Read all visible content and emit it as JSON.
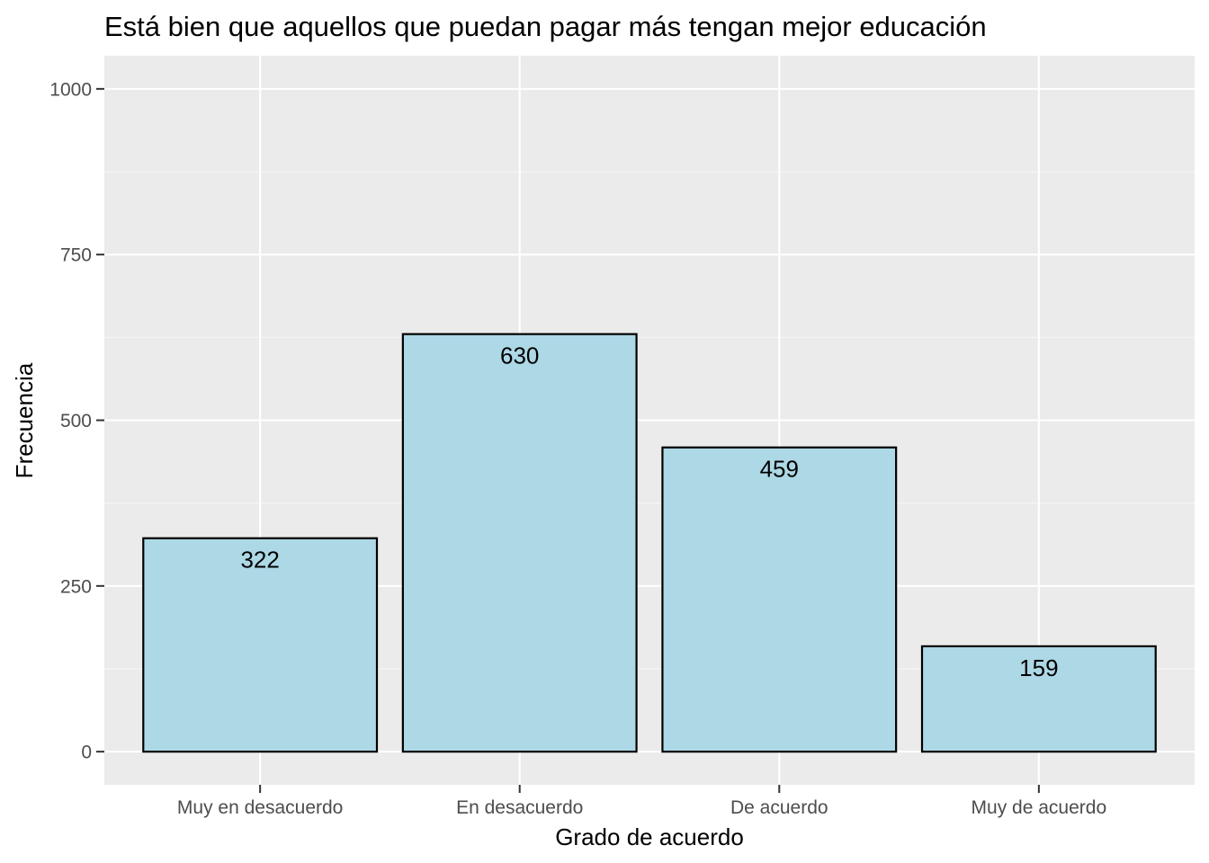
{
  "colors": {
    "panel_background": "#EBEBEB",
    "grid_major": "#FFFFFF",
    "grid_minor": "#F5F5F5",
    "bar_fill": "#ADD8E6",
    "bar_outline": "#000000",
    "tick_text": "#4D4D4D"
  },
  "chart_data": {
    "type": "bar",
    "title": "Está bien que aquellos que puedan pagar más tengan mejor educación",
    "xlabel": "Grado de acuerdo",
    "ylabel": "Frecuencia",
    "categories": [
      "Muy en desacuerdo",
      "En desacuerdo",
      "De acuerdo",
      "Muy de acuerdo"
    ],
    "values": [
      322,
      630,
      459,
      159
    ],
    "data_labels": [
      "322",
      "630",
      "459",
      "159"
    ],
    "yticks": [
      0,
      250,
      500,
      750,
      1000
    ],
    "ytick_labels": [
      "0",
      "250",
      "500",
      "750",
      "1000"
    ],
    "ylim": [
      -50,
      1050
    ],
    "grid": true,
    "legend": "none"
  }
}
